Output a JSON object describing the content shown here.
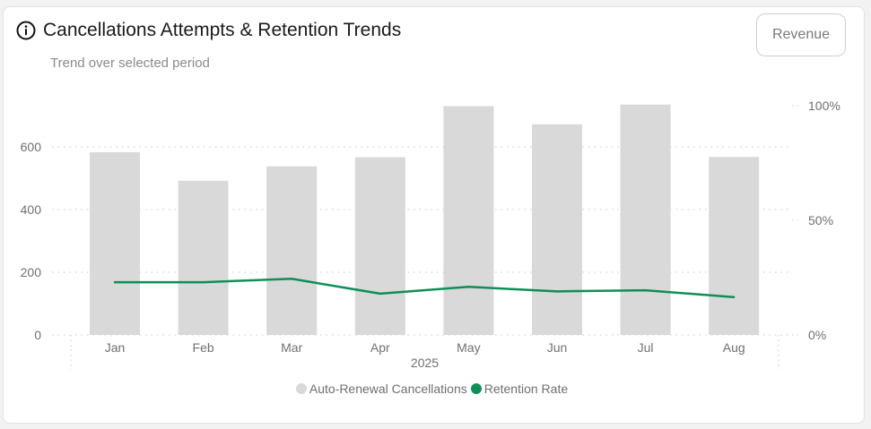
{
  "header": {
    "title": "Cancellations Attempts & Retention Trends",
    "subtitle": "Trend over selected period",
    "revenue_button": "Revenue"
  },
  "chart_data": {
    "type": "bar",
    "categories": [
      "Jan",
      "Feb",
      "Mar",
      "Apr",
      "May",
      "Jun",
      "Jul",
      "Aug"
    ],
    "x_group_label": "2025",
    "series": [
      {
        "name": "Auto-Renewal Cancellations",
        "type": "bar",
        "axis": "left",
        "color": "#d9d9d9",
        "values": [
          583,
          492,
          538,
          567,
          730,
          672,
          735,
          568
        ]
      },
      {
        "name": "Retention Rate",
        "type": "line",
        "axis": "right",
        "color": "#0e8f57",
        "values": [
          23,
          23,
          24.5,
          18,
          21,
          19,
          19.5,
          16.5
        ]
      }
    ],
    "y_left": {
      "ticks": [
        0,
        200,
        400,
        600
      ],
      "tick_labels": [
        "0",
        "200",
        "400",
        "600"
      ],
      "max": 730
    },
    "y_right": {
      "ticks": [
        0,
        50,
        100
      ],
      "tick_labels": [
        "0%",
        "50%",
        "100%"
      ],
      "max": 100
    },
    "grid": true,
    "legend_position": "bottom"
  },
  "legend": {
    "items": [
      {
        "label": "Auto-Renewal Cancellations",
        "color": "#d9d9d9"
      },
      {
        "label": "Retention Rate",
        "color": "#0e8f57"
      }
    ]
  }
}
